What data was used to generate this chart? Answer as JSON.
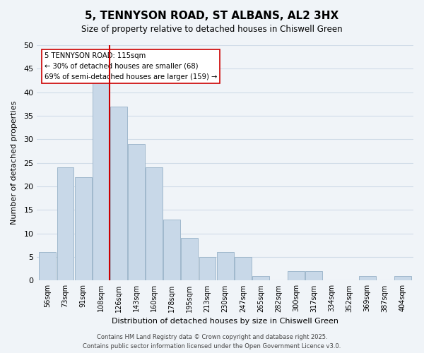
{
  "title": "5, TENNYSON ROAD, ST ALBANS, AL2 3HX",
  "subtitle": "Size of property relative to detached houses in Chiswell Green",
  "xlabel": "Distribution of detached houses by size in Chiswell Green",
  "ylabel": "Number of detached properties",
  "bar_labels": [
    "56sqm",
    "73sqm",
    "91sqm",
    "108sqm",
    "126sqm",
    "143sqm",
    "160sqm",
    "178sqm",
    "195sqm",
    "213sqm",
    "230sqm",
    "247sqm",
    "265sqm",
    "282sqm",
    "300sqm",
    "317sqm",
    "334sqm",
    "352sqm",
    "369sqm",
    "387sqm",
    "404sqm"
  ],
  "bar_values": [
    6,
    24,
    22,
    42,
    37,
    29,
    24,
    13,
    9,
    5,
    6,
    5,
    1,
    0,
    2,
    2,
    0,
    0,
    1,
    0,
    1
  ],
  "bar_color": "#c8d8e8",
  "bar_edge_color": "#a0b8cc",
  "grid_color": "#d0dce8",
  "background_color": "#f0f4f8",
  "vline_x_index": 3.5,
  "vline_color": "#cc0000",
  "annotation_title": "5 TENNYSON ROAD: 115sqm",
  "annotation_line1": "← 30% of detached houses are smaller (68)",
  "annotation_line2": "69% of semi-detached houses are larger (159) →",
  "ylim": [
    0,
    50
  ],
  "yticks": [
    0,
    5,
    10,
    15,
    20,
    25,
    30,
    35,
    40,
    45,
    50
  ],
  "footer_line1": "Contains HM Land Registry data © Crown copyright and database right 2025.",
  "footer_line2": "Contains public sector information licensed under the Open Government Licence v3.0."
}
